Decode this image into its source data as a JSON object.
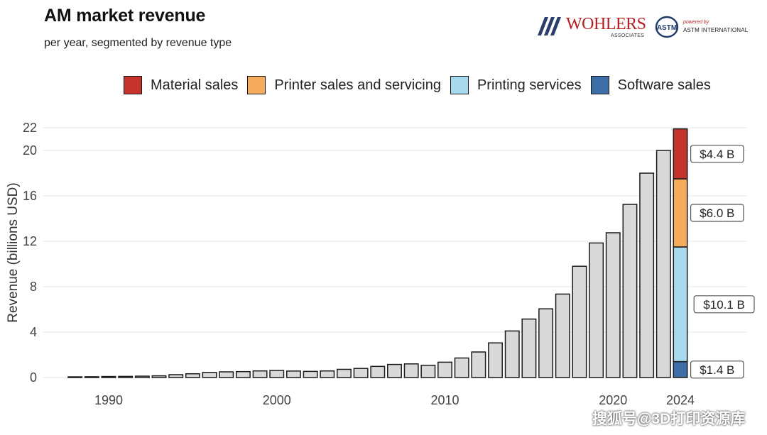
{
  "header": {
    "title": "AM market revenue",
    "subtitle": "per year, segmented by revenue type"
  },
  "logos": {
    "wohlers": {
      "name": "WOHLERS",
      "sub": "ASSOCIATES"
    },
    "astm": {
      "powered_by": "powered by",
      "name": "ASTM INTERNATIONAL"
    }
  },
  "legend": [
    {
      "label": "Material sales",
      "color": "#c5332c"
    },
    {
      "label": "Printer sales and servicing",
      "color": "#f5ac5c"
    },
    {
      "label": "Printing services",
      "color": "#a8d9ec"
    },
    {
      "label": "Software sales",
      "color": "#3d6ea8"
    }
  ],
  "watermark": "搜狐号@3D打印资源库",
  "chart_data": {
    "type": "bar",
    "ylabel": "Revenue (billions USD)",
    "xlabel": "",
    "ylim": [
      0,
      22
    ],
    "yticks": [
      0,
      4,
      8,
      12,
      16,
      20,
      22
    ],
    "xticks": [
      1990,
      2000,
      2010,
      2020,
      2024
    ],
    "grid": true,
    "legend_position": "top",
    "bar_color": "#d9d9d9",
    "years": [
      1988,
      1989,
      1990,
      1991,
      1992,
      1993,
      1994,
      1995,
      1996,
      1997,
      1998,
      1999,
      2000,
      2001,
      2002,
      2003,
      2004,
      2005,
      2006,
      2007,
      2008,
      2009,
      2010,
      2011,
      2012,
      2013,
      2014,
      2015,
      2016,
      2017,
      2018,
      2019,
      2020,
      2021,
      2022,
      2023
    ],
    "values": [
      0.06,
      0.07,
      0.09,
      0.1,
      0.12,
      0.15,
      0.25,
      0.33,
      0.45,
      0.5,
      0.52,
      0.58,
      0.62,
      0.57,
      0.54,
      0.58,
      0.72,
      0.8,
      0.98,
      1.15,
      1.2,
      1.08,
      1.35,
      1.72,
      2.25,
      3.05,
      4.1,
      5.15,
      6.05,
      7.35,
      9.8,
      11.85,
      12.75,
      15.25,
      18.0,
      20.0
    ],
    "stacked": {
      "year": 2024,
      "segments": [
        {
          "name": "Software sales",
          "value": 1.4,
          "label": "$1.4 B",
          "color": "#3d6ea8"
        },
        {
          "name": "Printing services",
          "value": 10.1,
          "label": "$10.1 B",
          "color": "#a8d9ec"
        },
        {
          "name": "Printer sales and servicing",
          "value": 6.0,
          "label": "$6.0 B",
          "color": "#f5ac5c"
        },
        {
          "name": "Material sales",
          "value": 4.4,
          "label": "$4.4 B",
          "color": "#c5332c"
        }
      ]
    }
  }
}
